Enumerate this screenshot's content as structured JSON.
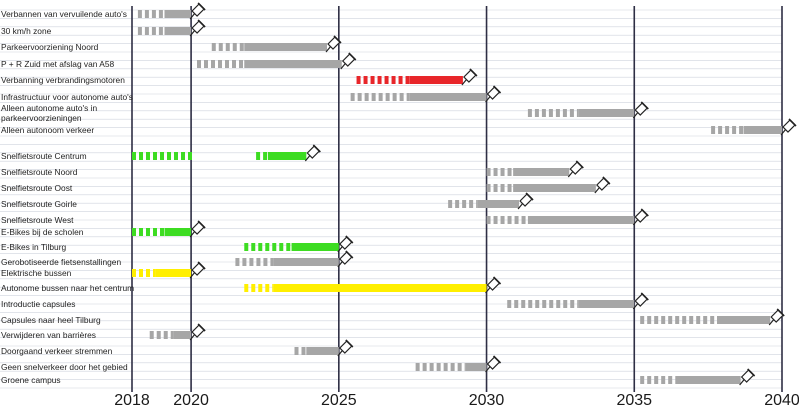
{
  "chart_data": {
    "type": "gantt",
    "title": "",
    "xlabel": "",
    "ylabel": "",
    "xlim": [
      2018,
      2040
    ],
    "x_ticks": [
      "2018",
      "2020",
      "2025",
      "2030",
      "2035",
      "2040"
    ],
    "grid": true,
    "colors": {
      "gray": "#a6a6a6",
      "red": "#e8262a",
      "green": "#3ddc22",
      "yellow": "#ffef00",
      "axis": "#2e2e44",
      "gridline": "#cfd3de"
    },
    "tasks": [
      {
        "label": "Verbannen van vervuilende auto's",
        "color": "gray",
        "dashed": [
          2018.2,
          2019.1
        ],
        "solid": [
          2019.1,
          2020.0
        ],
        "milestone": 2020.0
      },
      {
        "label": "30 km/h zone",
        "color": "gray",
        "dashed": [
          2018.2,
          2019.1
        ],
        "solid": [
          2019.1,
          2020.0
        ],
        "milestone": 2020.0
      },
      {
        "label": "Parkeervoorziening Noord",
        "color": "gray",
        "dashed": [
          2020.7,
          2021.8
        ],
        "solid": [
          2021.8,
          2024.6
        ],
        "milestone": 2024.6
      },
      {
        "label": "P + R Zuid met afslag van A58",
        "color": "gray",
        "dashed": [
          2020.2,
          2021.8
        ],
        "solid": [
          2021.8,
          2025.1
        ],
        "milestone": 2025.1
      },
      {
        "label": "Verbanning verbrandingsmotoren",
        "color": "red",
        "dashed": [
          2025.6,
          2027.4
        ],
        "solid": [
          2027.4,
          2029.2
        ],
        "milestone": 2029.2
      },
      {
        "label": "Infrastructuur voor autonome auto's",
        "color": "gray",
        "dashed": [
          2025.4,
          2027.4
        ],
        "solid": [
          2027.4,
          2030.0
        ],
        "milestone": 2030.0
      },
      {
        "label": "Alleen autonome auto's in parkeervoorzieningen",
        "color": "gray",
        "dashed": [
          2031.4,
          2033.1
        ],
        "solid": [
          2033.1,
          2035.0
        ],
        "milestone": 2035.0
      },
      {
        "label": "Alleen autonoom verkeer",
        "color": "gray",
        "dashed": [
          2037.6,
          2038.7
        ],
        "solid": [
          2038.7,
          2040.0
        ],
        "milestone": 2040.0
      },
      {
        "label": "Snelfietsroute Centrum",
        "color": "green",
        "dashed": [
          2018.0,
          2020.1
        ],
        "solid": null,
        "milestone": null
      },
      {
        "label": "",
        "color": "green",
        "dashed": [
          2022.2,
          2022.6
        ],
        "solid": [
          2022.6,
          2023.9
        ],
        "milestone": 2023.9,
        "same_row_as": 8
      },
      {
        "label": "Snelfietsroute Noord",
        "color": "gray",
        "dashed": [
          2030.0,
          2030.9
        ],
        "solid": [
          2030.9,
          2032.8
        ],
        "milestone": 2032.8
      },
      {
        "label": "Snelfietsroute Oost",
        "color": "gray",
        "dashed": [
          2030.0,
          2030.9
        ],
        "solid": [
          2030.9,
          2033.7
        ],
        "milestone": 2033.7
      },
      {
        "label": "Snelfietsroute Goirle",
        "color": "gray",
        "dashed": [
          2028.7,
          2029.7
        ],
        "solid": [
          2029.7,
          2031.1
        ],
        "milestone": 2031.1
      },
      {
        "label": "Snelfietsroute West",
        "color": "gray",
        "dashed": [
          2030.0,
          2031.4
        ],
        "solid": [
          2031.4,
          2035.0
        ],
        "milestone": 2035.0
      },
      {
        "label": "E-Bikes bij de scholen",
        "color": "green",
        "dashed": [
          2018.0,
          2019.1
        ],
        "solid": [
          2019.1,
          2020.0
        ],
        "milestone": 2020.0
      },
      {
        "label": "E-Bikes in Tilburg",
        "color": "green",
        "dashed": [
          2021.8,
          2023.4
        ],
        "solid": [
          2023.4,
          2025.0
        ],
        "milestone": 2025.0
      },
      {
        "label": "Gerobotiseerde fietsenstallingen",
        "color": "gray",
        "dashed": [
          2021.5,
          2022.8
        ],
        "solid": [
          2022.8,
          2025.0
        ],
        "milestone": 2025.0
      },
      {
        "label": "Elektrische bussen",
        "color": "yellow",
        "dashed": [
          2018.0,
          2018.8
        ],
        "solid": [
          2018.8,
          2020.0
        ],
        "milestone": 2020.0
      },
      {
        "label": "Autonome bussen naar het centrum",
        "color": "yellow",
        "dashed": [
          2021.8,
          2022.8
        ],
        "solid": [
          2022.8,
          2030.0
        ],
        "milestone": 2030.0
      },
      {
        "label": "Introductie capsules",
        "color": "gray",
        "dashed": [
          2030.7,
          2033.1
        ],
        "solid": [
          2033.1,
          2035.0
        ],
        "milestone": 2035.0
      },
      {
        "label": "Capsules naar heel Tilburg",
        "color": "gray",
        "dashed": [
          2035.2,
          2037.8
        ],
        "solid": [
          2037.8,
          2039.6
        ],
        "milestone": 2039.6
      },
      {
        "label": "Verwijderen van barrières",
        "color": "gray",
        "dashed": [
          2018.6,
          2019.4
        ],
        "solid": [
          2019.4,
          2020.0
        ],
        "milestone": 2020.0
      },
      {
        "label": "Doorgaand verkeer stremmen",
        "color": "gray",
        "dashed": [
          2023.5,
          2023.9
        ],
        "solid": [
          2023.9,
          2025.0
        ],
        "milestone": 2025.0
      },
      {
        "label": "Geen snelverkeer door het gebied",
        "color": "gray",
        "dashed": [
          2027.6,
          2029.3
        ],
        "solid": [
          2029.3,
          2030.0
        ],
        "milestone": 2030.0
      },
      {
        "label": "Groene campus",
        "color": "gray",
        "dashed": [
          2035.2,
          2036.4
        ],
        "solid": [
          2036.4,
          2038.6
        ],
        "milestone": 2038.6
      }
    ]
  }
}
